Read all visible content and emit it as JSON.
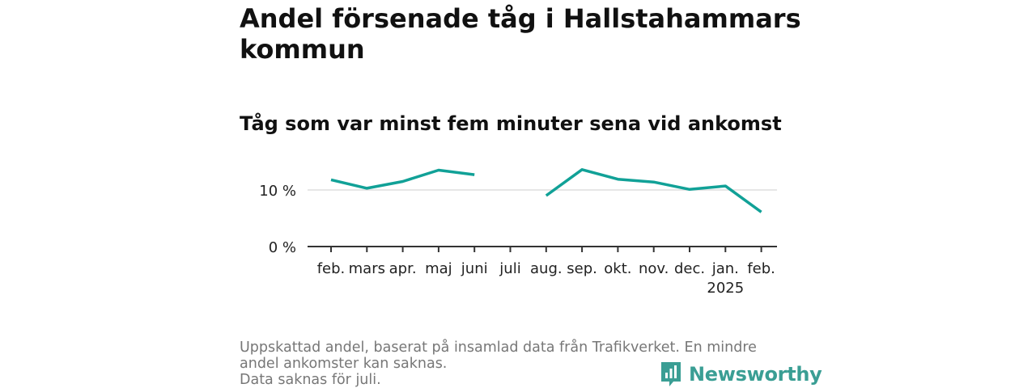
{
  "header": {
    "title": "Andel försenade tåg i Hallstahammars kommun",
    "subtitle": "Tåg som var minst fem minuter sena vid ankomst"
  },
  "chart_data": {
    "type": "line",
    "title": "Andel försenade tåg i Hallstahammars kommun",
    "subtitle": "Tåg som var minst fem minuter sena vid ankomst",
    "categories": [
      "feb.",
      "mars",
      "apr.",
      "maj",
      "juni",
      "juli",
      "aug.",
      "sep.",
      "okt.",
      "nov.",
      "dec.",
      "jan.",
      "feb."
    ],
    "category_sublabels": [
      "",
      "",
      "",
      "",
      "",
      "",
      "",
      "",
      "",
      "",
      "",
      "2025",
      ""
    ],
    "series": [
      {
        "values": [
          11.8,
          10.3,
          11.5,
          13.5,
          12.7,
          null,
          9.0,
          13.6,
          11.9,
          11.4,
          10.1,
          10.7,
          6.1
        ],
        "color": "#11a197"
      }
    ],
    "y_ticks": [
      0,
      10
    ],
    "y_tick_labels": [
      "0 %",
      "10 %"
    ],
    "ylim": [
      0,
      15
    ],
    "gridlines": "horizontal",
    "xlabel": "",
    "ylabel": "",
    "line_color": "#11a197",
    "grid_color": "#dddddd",
    "axis_color": "#333333"
  },
  "footer": {
    "note_1": "Uppskattad andel, baserat på insamlad data från Trafikverket. En mindre andel ankomster kan saknas.",
    "note_2": "Data saknas för juli."
  },
  "logo": {
    "name": "Newsworthy",
    "icon": "newsworthy-logo-icon",
    "color": "#3a9e94"
  }
}
